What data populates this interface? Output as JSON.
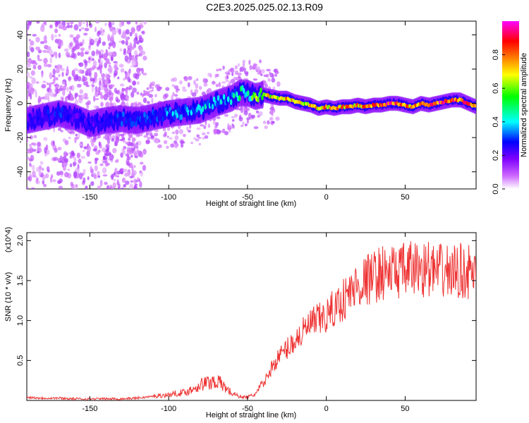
{
  "title": "C2E3.2025.025.02.13.R09",
  "chart_data": [
    {
      "type": "heatmap",
      "xlabel": "Height of straight line (km)",
      "ylabel": "Frequency (Hz)",
      "xlim": [
        -190,
        95
      ],
      "ylim": [
        -50,
        48
      ],
      "x_ticks": [
        -150,
        -100,
        -50,
        0,
        50
      ],
      "y_ticks": [
        -40,
        -20,
        0,
        20,
        40
      ],
      "colorbar": {
        "label": "Normalized spectral amplitude",
        "range": [
          0,
          1
        ],
        "ticks": [
          "0.0",
          "0.2",
          "0.4",
          "0.6",
          "0.8"
        ],
        "tick_values": [
          0,
          0.2,
          0.4,
          0.6,
          0.8
        ],
        "colormap": [
          "#ffffff",
          "#cc66ff",
          "#7f00ff",
          "#0000ff",
          "#00ffff",
          "#00ff00",
          "#ffff00",
          "#ff7f00",
          "#ff0000",
          "#ff00ff"
        ]
      },
      "ridge": {
        "x": [
          -190,
          -180,
          -170,
          -160,
          -150,
          -140,
          -130,
          -120,
          -110,
          -100,
          -90,
          -80,
          -70,
          -60,
          -55,
          -50,
          -45,
          -40,
          -35,
          -30,
          -25,
          -20,
          -15,
          -10,
          -5,
          0,
          5,
          10,
          15,
          20,
          25,
          30,
          35,
          40,
          45,
          50,
          55,
          60,
          65,
          70,
          75,
          80,
          85,
          90,
          95
        ],
        "y": [
          -10,
          -8,
          -6,
          -8,
          -12,
          -10,
          -9,
          -10,
          -8,
          -6,
          -5,
          -4,
          0,
          3,
          6,
          6,
          4,
          5,
          4,
          3,
          3,
          1,
          0,
          -1,
          -3,
          -2,
          -3,
          -2,
          -2,
          -1,
          -2,
          -1,
          -1,
          0,
          0,
          -1,
          -2,
          0,
          -1,
          0,
          1,
          2,
          2,
          0,
          -2
        ]
      },
      "peak_amplitude": [
        0.3,
        0.3,
        0.35,
        0.3,
        0.3,
        0.3,
        0.35,
        0.35,
        0.35,
        0.4,
        0.4,
        0.45,
        0.45,
        0.45,
        0.5,
        0.5,
        0.6,
        0.7,
        0.7,
        0.75,
        0.8,
        0.75,
        0.7,
        0.75,
        0.8,
        0.8,
        0.75,
        0.8,
        0.8,
        0.8,
        0.8,
        0.85,
        0.85,
        0.9,
        0.9,
        0.85,
        0.8,
        0.85,
        0.85,
        0.9,
        0.9,
        0.9,
        0.9,
        0.85,
        0.85
      ]
    },
    {
      "type": "line",
      "xlabel": "Height of straight line (km)",
      "ylabel": "SNR (10 * v/v)",
      "y_multiplier": "(x10^4)",
      "xlim": [
        -190,
        95
      ],
      "ylim": [
        0,
        2.1
      ],
      "x_ticks": [
        -150,
        -100,
        -50,
        0,
        50
      ],
      "y_ticks": [
        0.5,
        1.0,
        1.5,
        2.0
      ],
      "color": "#ee3333",
      "x": [
        -190,
        -180,
        -170,
        -160,
        -150,
        -140,
        -130,
        -120,
        -110,
        -100,
        -95,
        -90,
        -85,
        -80,
        -75,
        -70,
        -65,
        -60,
        -55,
        -50,
        -45,
        -40,
        -35,
        -30,
        -25,
        -20,
        -15,
        -10,
        -5,
        0,
        5,
        10,
        15,
        20,
        25,
        30,
        35,
        40,
        45,
        50,
        55,
        60,
        65,
        70,
        75,
        80,
        85,
        90,
        95
      ],
      "y": [
        0.04,
        0.03,
        0.03,
        0.02,
        0.02,
        0.02,
        0.02,
        0.03,
        0.05,
        0.07,
        0.09,
        0.1,
        0.14,
        0.2,
        0.22,
        0.25,
        0.18,
        0.09,
        0.05,
        0.04,
        0.08,
        0.2,
        0.4,
        0.55,
        0.65,
        0.75,
        0.85,
        0.95,
        1.0,
        1.05,
        1.15,
        1.25,
        1.35,
        1.45,
        1.5,
        1.55,
        1.6,
        1.6,
        1.62,
        1.62,
        1.65,
        1.65,
        1.65,
        1.6,
        1.62,
        1.6,
        1.62,
        1.6,
        1.6
      ]
    }
  ]
}
